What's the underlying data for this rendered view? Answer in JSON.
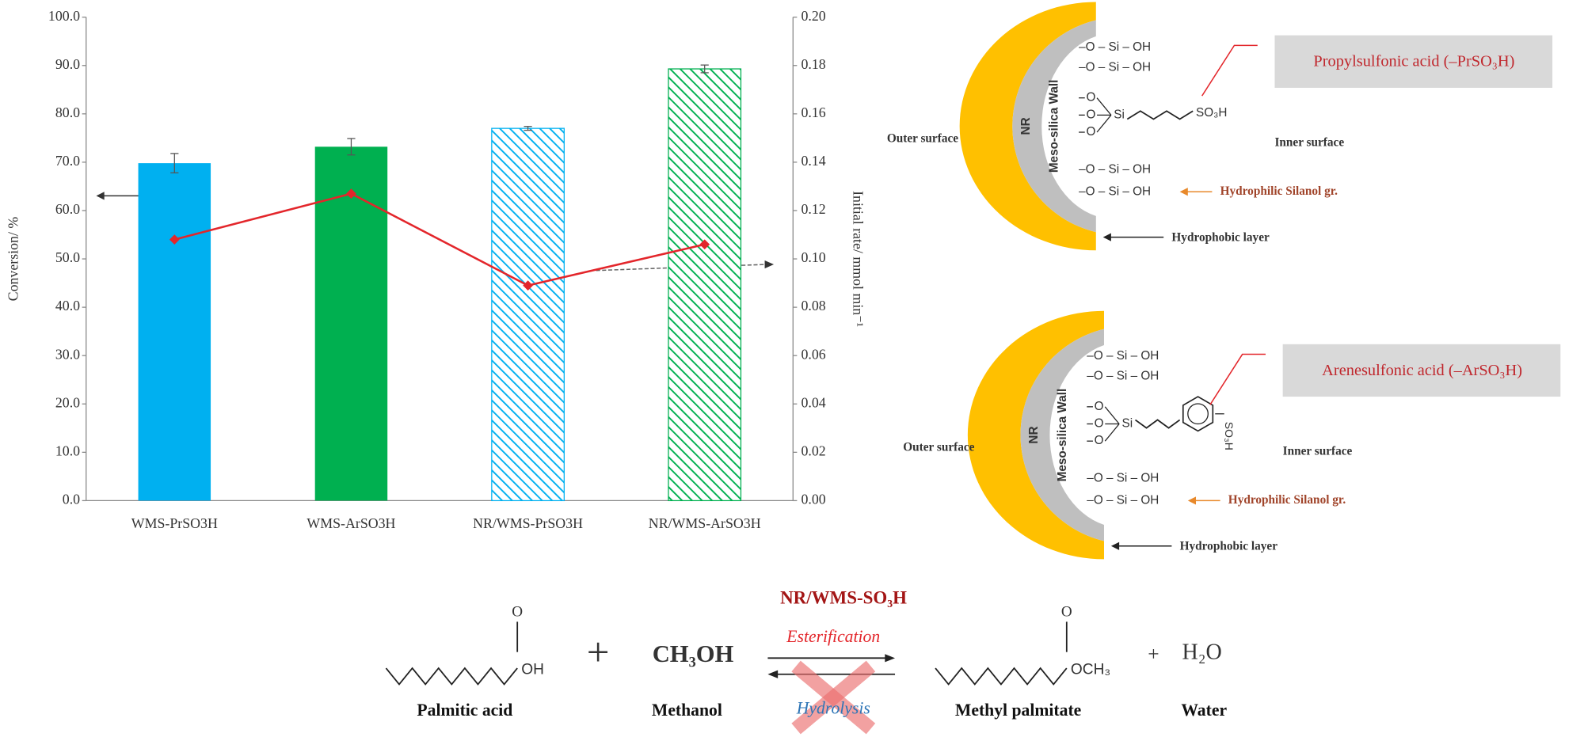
{
  "chart_data": {
    "type": "bar",
    "categories": [
      "WMS-PrSO3H",
      "WMS-ArSO3H",
      "NR/WMS-PrSO3H",
      "NR/WMS-ArSO3H"
    ],
    "series": [
      {
        "type": "bar",
        "colors": [
          "#00b0f0",
          "#00b050",
          "#00b0f0",
          "#00b050"
        ],
        "hatched": [
          false,
          false,
          true,
          true
        ],
        "values": [
          69.8,
          73.2,
          77.0,
          89.3
        ],
        "errors": [
          2.0,
          1.7,
          0.4,
          0.8
        ]
      },
      {
        "type": "line",
        "axis": "y2",
        "color": "#e3262b",
        "marker": "diamond",
        "values": [
          0.108,
          0.127,
          0.089,
          0.106
        ]
      }
    ],
    "ylabel": "Conversion/ %",
    "y2label": "Initial rate/ mmol min⁻¹",
    "ylim": [
      0,
      100
    ],
    "yticks": [
      {
        "value": 0,
        "label": "0.0"
      },
      {
        "value": 10,
        "label": "10.0"
      },
      {
        "value": 20,
        "label": "20.0"
      },
      {
        "value": 30,
        "label": "30.0"
      },
      {
        "value": 40,
        "label": "40.0"
      },
      {
        "value": 50,
        "label": "50.0"
      },
      {
        "value": 60,
        "label": "60.0"
      },
      {
        "value": 70,
        "label": "70.0"
      },
      {
        "value": 80,
        "label": "80.0"
      },
      {
        "value": 90,
        "label": "90.0"
      },
      {
        "value": 100,
        "label": "100.0"
      }
    ],
    "y2lim": [
      0,
      0.2
    ],
    "y2ticks": [
      {
        "value": 0,
        "label": "0.00"
      },
      {
        "value": 0.02,
        "label": "0.02"
      },
      {
        "value": 0.04,
        "label": "0.04"
      },
      {
        "value": 0.06,
        "label": "0.06"
      },
      {
        "value": 0.08,
        "label": "0.08"
      },
      {
        "value": 0.1,
        "label": "0.10"
      },
      {
        "value": 0.12,
        "label": "0.12"
      },
      {
        "value": 0.14,
        "label": "0.14"
      },
      {
        "value": 0.16,
        "label": "0.16"
      },
      {
        "value": 0.18,
        "label": "0.18"
      },
      {
        "value": 0.2,
        "label": "0.20"
      }
    ],
    "grid": false
  },
  "diagrams": [
    {
      "acid_label": "Propylsulfonic acid (–PrSO₃H)",
      "outer_label": "NR",
      "wall_label": "Meso-silica Wall",
      "outer_surface": "Outer surface",
      "inner_surface": "Inner surface",
      "silanol_groups": [
        "–O – Si – OH",
        "–O – Si – OH",
        "–O – Si – OH",
        "–O – Si – OH"
      ],
      "anchor_oxygens": [
        "O",
        "O",
        "O"
      ],
      "silicon": "Si",
      "sulfonic_group": "SO₃H",
      "hydrophilic_label": "Hydrophilic Silanol gr.",
      "hydrophobic_label": "Hydrophobic layer"
    },
    {
      "acid_label": "Arenesulfonic acid (–ArSO₃H)",
      "outer_label": "NR",
      "wall_label": "Meso-silica Wall",
      "outer_surface": "Outer surface",
      "inner_surface": "Inner surface",
      "silanol_groups": [
        "–O – Si – OH",
        "–O – Si – OH",
        "–O – Si – OH",
        "–O – Si – OH"
      ],
      "anchor_oxygens": [
        "O",
        "O",
        "O"
      ],
      "silicon": "Si",
      "sulfonic_group": "SO₃H",
      "hydrophilic_label": "Hydrophilic Silanol gr.",
      "hydrophobic_label": "Hydrophobic layer"
    }
  ],
  "reaction": {
    "catalyst": "NR/WMS-SO₃H",
    "forward": "Esterification",
    "reverse": "Hydrolysis",
    "plus": [
      "+",
      "+"
    ],
    "methanol_formula": "CH₃OH",
    "water_formula": "H₂O",
    "acid_carbonyl": "O",
    "acid_tail": "OH",
    "ester_carbonyl": "O",
    "ester_tail": "OCH₃",
    "names": [
      "Palmitic acid",
      "Methanol",
      "Methyl palmitate",
      "Water"
    ]
  }
}
